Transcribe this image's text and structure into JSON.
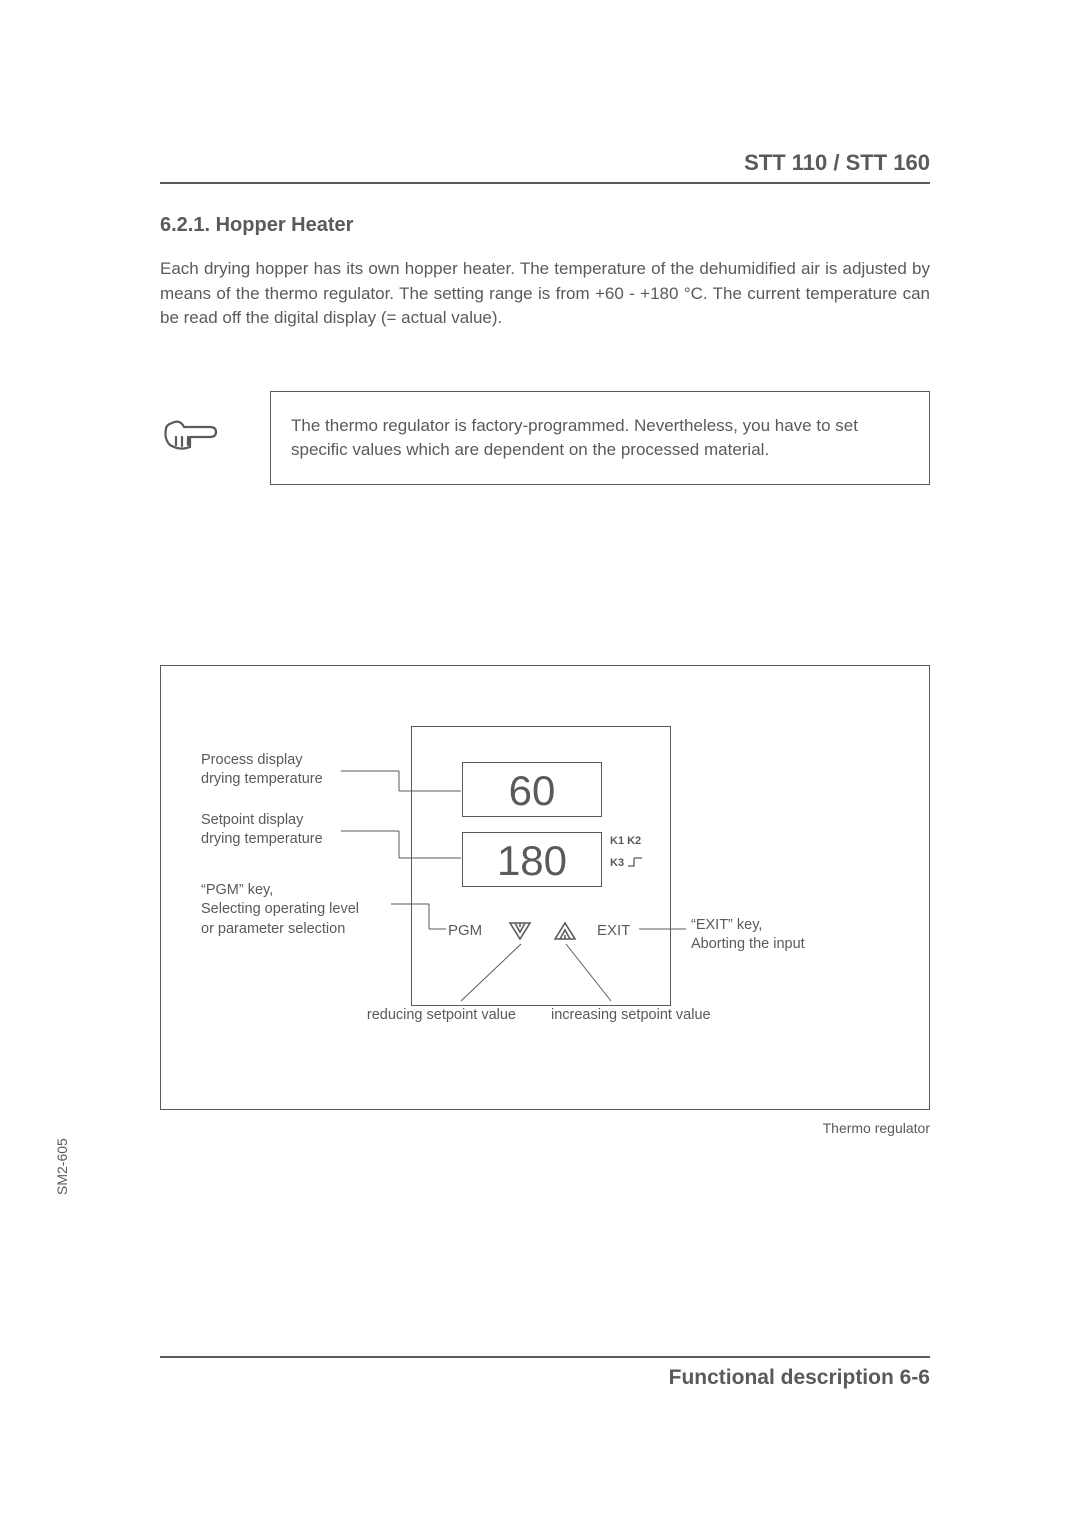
{
  "header": {
    "title": "STT 110 / STT 160"
  },
  "section": {
    "number": "6.2.1.",
    "title": "Hopper Heater",
    "body": "Each drying hopper has its own hopper heater. The temperature of the dehumidified air is adjusted by means of the thermo regulator. The setting range is from +60 - +180 °C. The current temperature can be read off the digital display (= actual value)."
  },
  "note": {
    "text": "The thermo regulator is factory-programmed. Nevertheless, you have to set specific values which are dependent on the processed material."
  },
  "diagram": {
    "caption": "Thermo regulator",
    "process_value": "60",
    "setpoint_value": "180",
    "k12": "K1 K2",
    "k3": "K3",
    "pgm": "PGM",
    "exit": "EXIT",
    "labels": {
      "process": "Process display\ndrying temperature",
      "setpoint": "Setpoint display\ndrying temperature",
      "pgm_key": "“PGM” key,\nSelecting operating level\nor parameter selection",
      "exit_key": "“EXIT” key,\nAborting the input",
      "reduce": "reducing setpoint value",
      "increase": "increasing setpoint value"
    }
  },
  "footer": {
    "text": "Functional description 6-6"
  },
  "side_code": "SM2-605",
  "colors": {
    "text": "#5a5a5a",
    "border": "#5a5a5a",
    "bg": "#ffffff"
  }
}
